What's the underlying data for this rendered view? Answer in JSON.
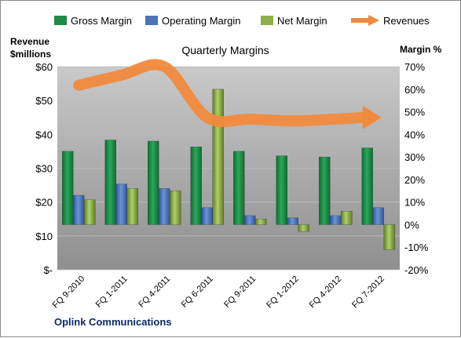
{
  "chart_data": {
    "type": "bar",
    "title": "Quarterly Margins",
    "left_axis_label": [
      "Revenue",
      "$millions"
    ],
    "right_axis_label": "Margin %",
    "footer": "Oplink Communications",
    "categories": [
      "FQ 9-2010",
      "FQ 1-2011",
      "FQ 4-2011",
      "FQ 6-2011",
      "FQ 9-2011",
      "FQ 1-2012",
      "FQ 4-2012",
      "FQ 7-2012"
    ],
    "left_axis": {
      "min": 0,
      "max": 60,
      "ticks": [
        0,
        10,
        20,
        30,
        40,
        50,
        60
      ],
      "tick_labels": [
        "$-",
        "$10",
        "$20",
        "$30",
        "$40",
        "$50",
        "$60"
      ]
    },
    "right_axis": {
      "min": -20,
      "max": 70,
      "ticks": [
        -20,
        -10,
        0,
        10,
        20,
        30,
        40,
        50,
        60,
        70
      ],
      "tick_labels": [
        "-20%",
        "-10%",
        "0%",
        "10%",
        "20%",
        "30%",
        "40%",
        "50%",
        "60%",
        "70%"
      ]
    },
    "series": [
      {
        "name": "Gross Margin",
        "axis": "right",
        "color": "#1e8c46",
        "values": [
          32.5,
          37.5,
          37,
          34.5,
          32.5,
          30.5,
          30,
          34
        ]
      },
      {
        "name": "Operating Margin",
        "axis": "right",
        "color": "#4a73b8",
        "values": [
          13,
          18,
          16,
          7.5,
          4,
          3,
          4,
          7.5
        ]
      },
      {
        "name": "Net Margin",
        "axis": "right",
        "color": "#8eb04a",
        "values": [
          11,
          16,
          15,
          60,
          2.5,
          -3,
          6,
          -11
        ]
      },
      {
        "name": "Revenues",
        "axis": "left",
        "type": "line",
        "color": "#f08a3c",
        "values": [
          54.5,
          57.5,
          60,
          45,
          44.5,
          44,
          44.5,
          45
        ]
      }
    ],
    "legend_position": "top",
    "grid": true
  }
}
